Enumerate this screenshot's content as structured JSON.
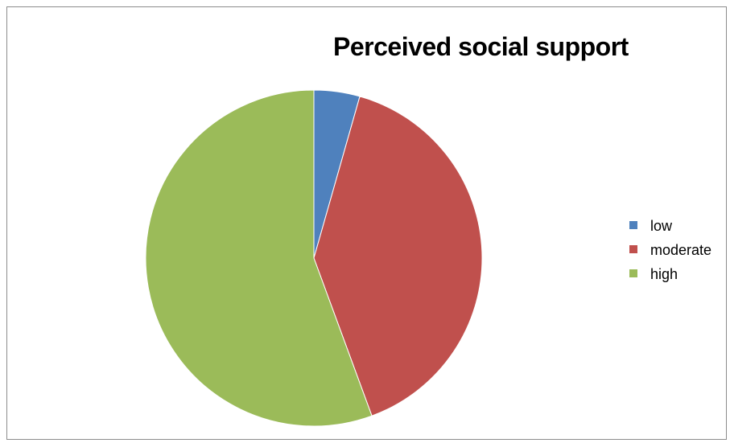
{
  "chart_data": {
    "type": "pie",
    "title": "Perceived  social support",
    "categories": [
      "low",
      "moderate",
      "high"
    ],
    "values": [
      4.4,
      40.0,
      55.6
    ],
    "colors": [
      "#4f81bd",
      "#c0504d",
      "#9bbb59"
    ],
    "start_angle_deg": 0,
    "direction": "clockwise",
    "legend_position": "right"
  }
}
